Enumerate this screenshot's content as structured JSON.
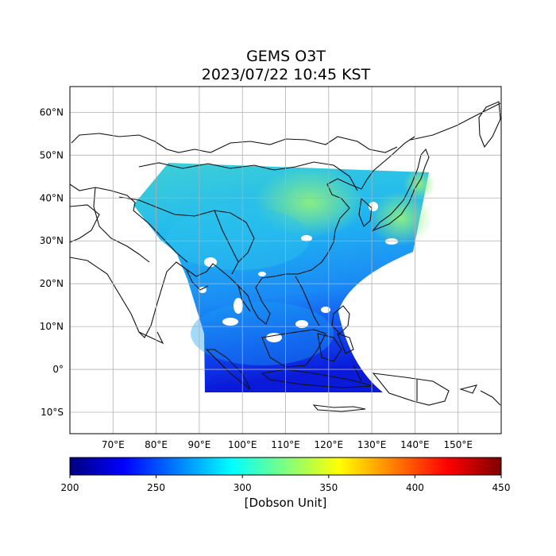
{
  "title": "GEMS O3T",
  "subtitle": "2023/07/22 10:45 KST",
  "map": {
    "lon_range": [
      60,
      160
    ],
    "lat_range": [
      -15,
      66
    ],
    "lon_ticks": [
      "70°E",
      "80°E",
      "90°E",
      "100°E",
      "110°E",
      "120°E",
      "130°E",
      "140°E",
      "150°E"
    ],
    "lon_tick_values": [
      70,
      80,
      90,
      100,
      110,
      120,
      130,
      140,
      150
    ],
    "lat_ticks": [
      "60°N",
      "50°N",
      "40°N",
      "30°N",
      "20°N",
      "10°N",
      "0°",
      "10°S"
    ],
    "lat_tick_values": [
      60,
      50,
      40,
      30,
      20,
      10,
      0,
      -10
    ],
    "grid": true,
    "variable": "Total column ozone",
    "colormap": "jet"
  },
  "colorbar": {
    "label": "[Dobson Unit]",
    "ticks": [
      "200",
      "250",
      "300",
      "350",
      "400",
      "450"
    ],
    "min": 200,
    "max": 450,
    "colors": [
      "#00007f",
      "#0000ff",
      "#007fff",
      "#00ffff",
      "#7fff7f",
      "#ffff00",
      "#ff7f00",
      "#ff0000",
      "#7f0000"
    ]
  }
}
